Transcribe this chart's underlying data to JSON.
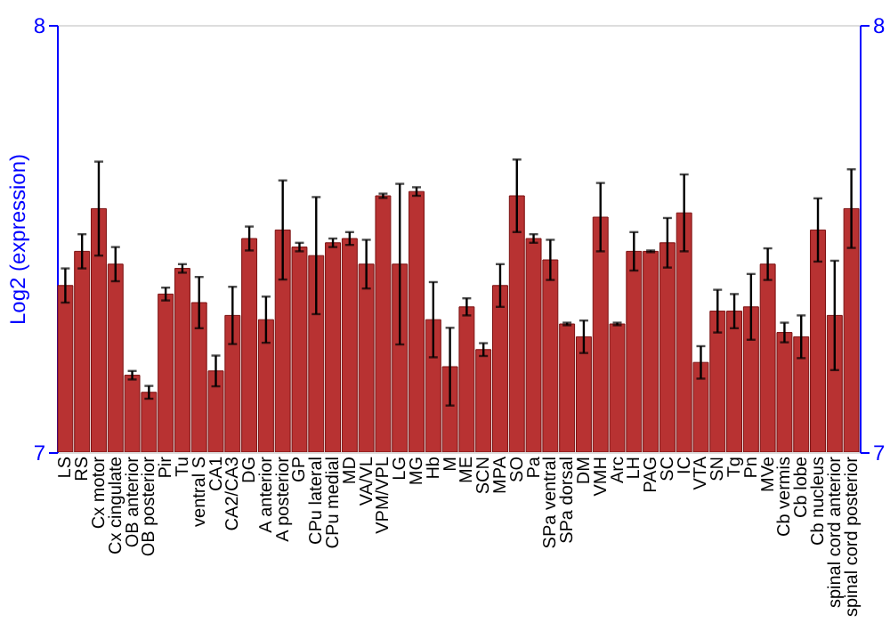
{
  "chart_data": {
    "type": "bar",
    "ylabel": "Log2 (expression)",
    "categories": [
      "LS",
      "RS",
      "Cx motor",
      "Cx cingulate",
      "OB anterior",
      "OB posterior",
      "Pir",
      "Tu",
      "ventral S",
      "CA1",
      "CA2/CA3",
      "DG",
      "A anterior",
      "A posterior",
      "GP",
      "CPu lateral",
      "CPu medial",
      "MD",
      "VA/VL",
      "VPM/VPL",
      "LG",
      "MG",
      "Hb",
      "M",
      "ME",
      "SCN",
      "MPA",
      "SO",
      "Pa",
      "SPa ventral",
      "SPa dorsal",
      "DM",
      "VMH",
      "Arc",
      "LH",
      "PAG",
      "SC",
      "IC",
      "VTA",
      "SN",
      "Tg",
      "Pn",
      "MVe",
      "Cb vermis",
      "Cb lobe",
      "Cb nucleus",
      "spinal cord anterior",
      "spinal cord posterior"
    ],
    "values": [
      7.39,
      7.47,
      7.57,
      7.44,
      7.18,
      7.14,
      7.37,
      7.43,
      7.35,
      7.19,
      7.32,
      7.5,
      7.31,
      7.52,
      7.48,
      7.46,
      7.49,
      7.5,
      7.44,
      7.6,
      7.44,
      7.61,
      7.31,
      7.2,
      7.34,
      7.24,
      7.39,
      7.6,
      7.5,
      7.45,
      7.3,
      7.27,
      7.55,
      7.3,
      7.47,
      7.47,
      7.49,
      7.56,
      7.21,
      7.33,
      7.33,
      7.34,
      7.44,
      7.28,
      7.27,
      7.52,
      7.32,
      7.57
    ],
    "errors": [
      0.04,
      0.04,
      0.11,
      0.04,
      0.01,
      0.015,
      0.015,
      0.01,
      0.06,
      0.036,
      0.067,
      0.028,
      0.054,
      0.116,
      0.01,
      0.137,
      0.01,
      0.015,
      0.057,
      0.005,
      0.188,
      0.01,
      0.088,
      0.091,
      0.02,
      0.015,
      0.05,
      0.085,
      0.01,
      0.047,
      0.003,
      0.038,
      0.08,
      0.003,
      0.045,
      0.002,
      0.058,
      0.09,
      0.038,
      0.05,
      0.04,
      0.077,
      0.037,
      0.023,
      0.05,
      0.074,
      0.128,
      0.092
    ],
    "color": "#b83232",
    "ylim": [
      7,
      8
    ],
    "yticks": [
      7,
      8
    ],
    "y2lim": [
      7,
      8
    ],
    "y2ticks": [
      7,
      8
    ],
    "grid": false
  }
}
